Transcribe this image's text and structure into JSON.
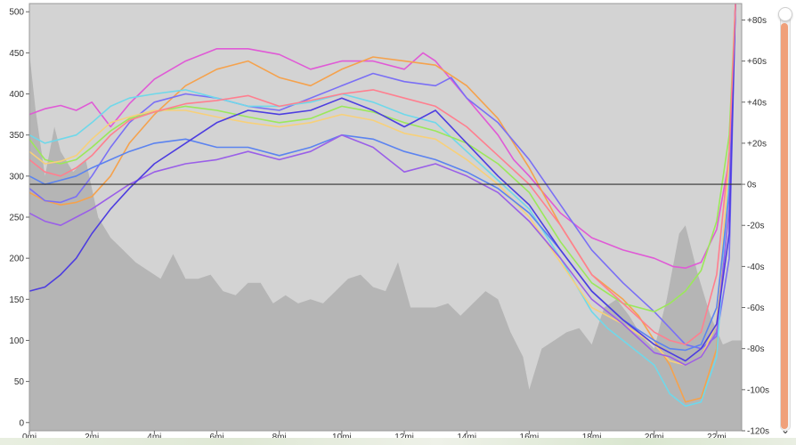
{
  "colors": {
    "plot_background": "#d3d3d3",
    "elevation_fill": "#b5b5b5",
    "zero_line": "#333333",
    "scrollbar_thumb": "#f0a07a"
  },
  "map_strip": "map",
  "icons": {
    "collapse": "chevron-down-icon"
  },
  "scrollbar": {
    "position": 0.03
  },
  "chart_data": {
    "type": "line",
    "title": "",
    "xlabel": "",
    "ylabel": "",
    "x_unit": "mi",
    "xlim": [
      0,
      22.8
    ],
    "ylim_left": [
      -10,
      510
    ],
    "ylim_right": [
      -120,
      88
    ],
    "x_ticks": [
      "0mi",
      "2mi",
      "4mi",
      "6mi",
      "8mi",
      "10mi",
      "12mi",
      "14mi",
      "16mi",
      "18mi",
      "20mi",
      "22mi"
    ],
    "y_ticks_left": [
      "0",
      "50",
      "100",
      "150",
      "200",
      "250",
      "300",
      "350",
      "400",
      "450",
      "500"
    ],
    "y_ticks_right": [
      "+80s",
      "+60s",
      "+40s",
      "+20s",
      "0s",
      "-20s",
      "-40s",
      "-60s",
      "-80s",
      "-100s",
      "-120s"
    ],
    "elevation": {
      "x": [
        0,
        0.2,
        0.5,
        0.8,
        1.0,
        1.4,
        1.8,
        2.2,
        2.6,
        3.0,
        3.4,
        3.8,
        4.2,
        4.6,
        5.0,
        5.4,
        5.8,
        6.2,
        6.6,
        7.0,
        7.4,
        7.8,
        8.2,
        8.6,
        9.0,
        9.4,
        9.8,
        10.2,
        10.6,
        11.0,
        11.4,
        11.8,
        12.2,
        12.6,
        13.0,
        13.4,
        13.8,
        14.2,
        14.6,
        15.0,
        15.4,
        15.8,
        16.0,
        16.4,
        16.8,
        17.2,
        17.6,
        18.0,
        18.4,
        18.8,
        19.2,
        19.6,
        20.0,
        20.4,
        20.8,
        21.0,
        21.4,
        21.8,
        22.2,
        22.5,
        22.8
      ],
      "y": [
        450,
        380,
        300,
        360,
        330,
        305,
        320,
        250,
        225,
        210,
        195,
        185,
        175,
        205,
        175,
        175,
        180,
        160,
        155,
        170,
        170,
        145,
        155,
        145,
        150,
        145,
        160,
        175,
        180,
        165,
        160,
        195,
        140,
        140,
        140,
        145,
        130,
        145,
        160,
        150,
        110,
        80,
        40,
        90,
        100,
        110,
        115,
        95,
        140,
        150,
        130,
        105,
        90,
        150,
        230,
        240,
        180,
        130,
        95,
        100,
        100
      ]
    },
    "series": [
      {
        "color": "#e05ad6",
        "x": [
          0,
          0.5,
          1.0,
          1.5,
          2.0,
          2.6,
          3.2,
          4.0,
          5.0,
          6.0,
          7.0,
          8.0,
          9.0,
          10.0,
          11.0,
          12.0,
          12.6,
          13.0,
          14.0,
          15.0,
          15.5,
          16.0,
          17.0,
          18.0,
          19.0,
          20.0,
          20.6,
          21.0,
          21.5,
          22.0,
          22.4,
          22.6
        ],
        "y": [
          375,
          382,
          386,
          380,
          390,
          360,
          388,
          418,
          440,
          455,
          455,
          448,
          430,
          440,
          440,
          430,
          450,
          440,
          395,
          350,
          320,
          300,
          255,
          225,
          210,
          200,
          190,
          188,
          195,
          235,
          320,
          510
        ]
      },
      {
        "color": "#f5a24d",
        "x": [
          0,
          0.5,
          1.0,
          1.5,
          2.0,
          2.6,
          3.2,
          4.0,
          5.0,
          6.0,
          7.0,
          8.0,
          9.0,
          10.0,
          11.0,
          12.0,
          13.0,
          14.0,
          15.0,
          16.0,
          17.0,
          18.0,
          19.0,
          19.5,
          20.0,
          20.5,
          21.0,
          21.5,
          22.0,
          22.4,
          22.6
        ],
        "y": [
          280,
          270,
          265,
          268,
          275,
          300,
          340,
          375,
          410,
          430,
          440,
          420,
          410,
          430,
          445,
          440,
          435,
          410,
          370,
          310,
          240,
          180,
          150,
          130,
          100,
          70,
          25,
          30,
          90,
          300,
          510
        ]
      },
      {
        "color": "#7a6ff5",
        "x": [
          0,
          0.5,
          1.0,
          1.5,
          2.0,
          2.6,
          3.2,
          4.0,
          5.0,
          6.0,
          7.0,
          8.0,
          9.0,
          10.0,
          11.0,
          12.0,
          13.0,
          13.5,
          14.0,
          15.0,
          16.0,
          17.0,
          18.0,
          19.0,
          20.0,
          20.5,
          21.0,
          21.5,
          22.0,
          22.4,
          22.6
        ],
        "y": [
          285,
          270,
          268,
          275,
          300,
          335,
          365,
          390,
          400,
          395,
          385,
          380,
          395,
          410,
          425,
          415,
          410,
          420,
          395,
          365,
          320,
          265,
          210,
          170,
          135,
          115,
          95,
          90,
          105,
          200,
          510
        ]
      },
      {
        "color": "#6fd8ea",
        "x": [
          0,
          0.5,
          1.0,
          1.5,
          2.0,
          2.6,
          3.2,
          4.0,
          5.0,
          6.0,
          7.0,
          8.0,
          9.0,
          10.0,
          11.0,
          12.0,
          13.0,
          14.0,
          15.0,
          16.0,
          17.0,
          18.0,
          18.5,
          19.0,
          20.0,
          20.5,
          21.0,
          21.5,
          22.0,
          22.4,
          22.6
        ],
        "y": [
          350,
          340,
          345,
          350,
          365,
          385,
          395,
          400,
          405,
          395,
          385,
          385,
          390,
          400,
          390,
          375,
          365,
          330,
          295,
          260,
          200,
          135,
          115,
          100,
          70,
          35,
          20,
          25,
          80,
          300,
          510
        ]
      },
      {
        "color": "#9be85a",
        "x": [
          0,
          0.5,
          1.0,
          1.5,
          2.0,
          2.6,
          3.2,
          4.0,
          5.0,
          6.0,
          7.0,
          8.0,
          9.0,
          10.0,
          11.0,
          12.0,
          13.0,
          14.0,
          15.0,
          16.0,
          17.0,
          18.0,
          19.0,
          20.0,
          20.5,
          21.0,
          21.5,
          22.0,
          22.4,
          22.6
        ],
        "y": [
          345,
          320,
          315,
          320,
          335,
          355,
          370,
          378,
          385,
          380,
          372,
          365,
          370,
          385,
          378,
          365,
          355,
          340,
          315,
          280,
          220,
          170,
          145,
          135,
          145,
          160,
          185,
          245,
          350,
          510
        ]
      },
      {
        "color": "#f7d07a",
        "x": [
          0,
          0.5,
          1.0,
          1.5,
          2.0,
          2.6,
          3.2,
          4.0,
          5.0,
          6.0,
          7.0,
          8.0,
          9.0,
          10.0,
          11.0,
          12.0,
          13.0,
          14.0,
          15.0,
          16.0,
          17.0,
          18.0,
          19.0,
          20.0,
          20.5,
          21.0,
          21.5,
          22.0,
          22.4,
          22.6
        ],
        "y": [
          330,
          315,
          318,
          325,
          345,
          365,
          372,
          380,
          380,
          372,
          365,
          360,
          365,
          375,
          368,
          352,
          345,
          320,
          290,
          250,
          195,
          140,
          120,
          95,
          75,
          70,
          80,
          120,
          320,
          510
        ]
      },
      {
        "color": "#5b83f0",
        "x": [
          0,
          0.5,
          1.0,
          1.5,
          2.0,
          2.6,
          3.2,
          4.0,
          5.0,
          6.0,
          7.0,
          8.0,
          9.0,
          10.0,
          11.0,
          12.0,
          13.0,
          14.0,
          15.0,
          16.0,
          17.0,
          18.0,
          19.0,
          20.0,
          20.5,
          21.0,
          21.5,
          22.0,
          22.4,
          22.6
        ],
        "y": [
          300,
          290,
          295,
          300,
          310,
          320,
          330,
          340,
          345,
          335,
          335,
          325,
          335,
          350,
          345,
          330,
          320,
          305,
          285,
          255,
          210,
          160,
          125,
          100,
          90,
          88,
          95,
          140,
          280,
          510
        ]
      },
      {
        "color": "#9a5fe8",
        "x": [
          0,
          0.5,
          1.0,
          1.5,
          2.0,
          2.6,
          3.2,
          4.0,
          5.0,
          6.0,
          7.0,
          8.0,
          9.0,
          10.0,
          11.0,
          12.0,
          13.0,
          14.0,
          15.0,
          16.0,
          17.0,
          18.0,
          19.0,
          20.0,
          20.5,
          21.0,
          21.5,
          22.0,
          22.4,
          22.6
        ],
        "y": [
          255,
          245,
          240,
          250,
          260,
          275,
          290,
          305,
          315,
          320,
          330,
          320,
          330,
          350,
          335,
          305,
          315,
          300,
          280,
          245,
          200,
          150,
          120,
          85,
          80,
          70,
          80,
          110,
          260,
          510
        ]
      },
      {
        "color": "#4d3de0",
        "x": [
          0,
          0.5,
          1.0,
          1.5,
          2.0,
          2.6,
          3.2,
          4.0,
          5.0,
          6.0,
          7.0,
          8.0,
          9.0,
          10.0,
          11.0,
          12.0,
          13.0,
          14.0,
          15.0,
          16.0,
          17.0,
          18.0,
          19.0,
          20.0,
          20.5,
          21.0,
          21.5,
          22.0,
          22.4,
          22.6
        ],
        "y": [
          160,
          165,
          180,
          200,
          230,
          260,
          285,
          315,
          340,
          365,
          380,
          375,
          380,
          395,
          380,
          360,
          380,
          340,
          300,
          265,
          210,
          160,
          125,
          95,
          85,
          75,
          90,
          120,
          230,
          510
        ]
      },
      {
        "color": "#ff7f8f",
        "x": [
          0,
          0.5,
          1.0,
          1.5,
          2.0,
          2.6,
          3.2,
          4.0,
          5.0,
          6.0,
          7.0,
          8.0,
          9.0,
          10.0,
          11.0,
          12.0,
          13.0,
          14.0,
          15.0,
          16.0,
          17.0,
          18.0,
          19.0,
          20.0,
          20.5,
          21.0,
          21.5,
          22.0,
          22.4,
          22.6
        ],
        "y": [
          320,
          305,
          300,
          310,
          325,
          350,
          368,
          378,
          388,
          392,
          398,
          385,
          392,
          400,
          405,
          395,
          385,
          360,
          325,
          290,
          240,
          180,
          145,
          110,
          100,
          95,
          110,
          180,
          330,
          510
        ]
      }
    ]
  }
}
